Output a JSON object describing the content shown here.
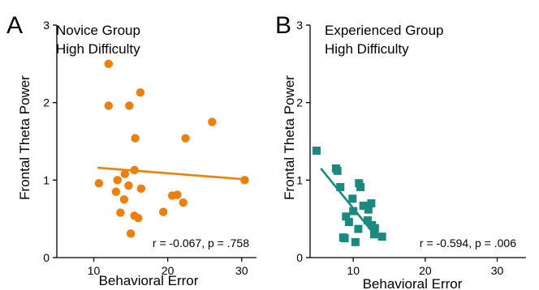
{
  "figure": {
    "shared_ylabel": "Frontal Theta Power",
    "shared_xlabel": "Behavioral Error"
  },
  "chart_data": [
    {
      "type": "scatter",
      "panel_label": "A",
      "title_lines": [
        "Novice Group",
        "High Difficulty"
      ],
      "xlabel": "Behavioral Error",
      "ylabel": "Frontal Theta Power",
      "xlim": [
        5,
        32
      ],
      "ylim": [
        0,
        3
      ],
      "xticks": [
        10,
        20,
        30
      ],
      "yticks": [
        0,
        1,
        2,
        3
      ],
      "grid": false,
      "marker": "circle",
      "color": "#f07f0a",
      "annotation": "r = -0.067, p = .758",
      "fit_line": {
        "x": [
          10.5,
          30.5
        ],
        "y": [
          1.16,
          1.01
        ]
      },
      "points": [
        {
          "x": 10.7,
          "y": 0.96
        },
        {
          "x": 12.0,
          "y": 2.5
        },
        {
          "x": 12.0,
          "y": 1.96
        },
        {
          "x": 13.0,
          "y": 0.85
        },
        {
          "x": 13.2,
          "y": 1.0
        },
        {
          "x": 13.6,
          "y": 0.58
        },
        {
          "x": 14.1,
          "y": 0.75
        },
        {
          "x": 14.2,
          "y": 1.08
        },
        {
          "x": 14.7,
          "y": 0.93
        },
        {
          "x": 14.8,
          "y": 1.96
        },
        {
          "x": 15.0,
          "y": 0.31
        },
        {
          "x": 15.5,
          "y": 1.13
        },
        {
          "x": 15.5,
          "y": 0.54
        },
        {
          "x": 15.6,
          "y": 1.54
        },
        {
          "x": 16.0,
          "y": 0.51
        },
        {
          "x": 16.3,
          "y": 2.13
        },
        {
          "x": 16.4,
          "y": 0.89
        },
        {
          "x": 19.4,
          "y": 0.59
        },
        {
          "x": 20.6,
          "y": 0.8
        },
        {
          "x": 21.3,
          "y": 0.81
        },
        {
          "x": 22.1,
          "y": 0.71
        },
        {
          "x": 22.4,
          "y": 1.54
        },
        {
          "x": 26.0,
          "y": 1.75
        },
        {
          "x": 30.4,
          "y": 1.0
        }
      ]
    },
    {
      "type": "scatter",
      "panel_label": "B",
      "title_lines": [
        "Experienced Group",
        "High Difficulty"
      ],
      "xlabel": "Behavioral Error",
      "ylabel": "Frontal Theta Power",
      "xlim": [
        4,
        34
      ],
      "ylim": [
        0,
        3
      ],
      "xticks": [
        10,
        20,
        30
      ],
      "yticks": [
        0,
        1,
        2,
        3
      ],
      "grid": false,
      "marker": "square",
      "color": "#1a8a80",
      "annotation": "r = -0.594, p = .006",
      "fit_line": {
        "x": [
          5.5,
          13.2
        ],
        "y": [
          1.15,
          0.27
        ]
      },
      "points": [
        {
          "x": 4.9,
          "y": 1.38
        },
        {
          "x": 7.6,
          "y": 1.15
        },
        {
          "x": 7.8,
          "y": 1.12
        },
        {
          "x": 8.2,
          "y": 0.91
        },
        {
          "x": 8.6,
          "y": 0.26
        },
        {
          "x": 8.8,
          "y": 0.25
        },
        {
          "x": 9.0,
          "y": 0.53
        },
        {
          "x": 9.4,
          "y": 0.46
        },
        {
          "x": 9.9,
          "y": 0.76
        },
        {
          "x": 10.0,
          "y": 0.6
        },
        {
          "x": 10.3,
          "y": 0.2
        },
        {
          "x": 10.7,
          "y": 0.37
        },
        {
          "x": 10.8,
          "y": 0.96
        },
        {
          "x": 11.0,
          "y": 0.91
        },
        {
          "x": 11.4,
          "y": 0.67
        },
        {
          "x": 12.0,
          "y": 0.48
        },
        {
          "x": 12.1,
          "y": 0.62
        },
        {
          "x": 12.5,
          "y": 0.7
        },
        {
          "x": 12.6,
          "y": 0.42
        },
        {
          "x": 12.9,
          "y": 0.3
        },
        {
          "x": 13.0,
          "y": 0.38
        },
        {
          "x": 14.0,
          "y": 0.27
        }
      ]
    }
  ]
}
